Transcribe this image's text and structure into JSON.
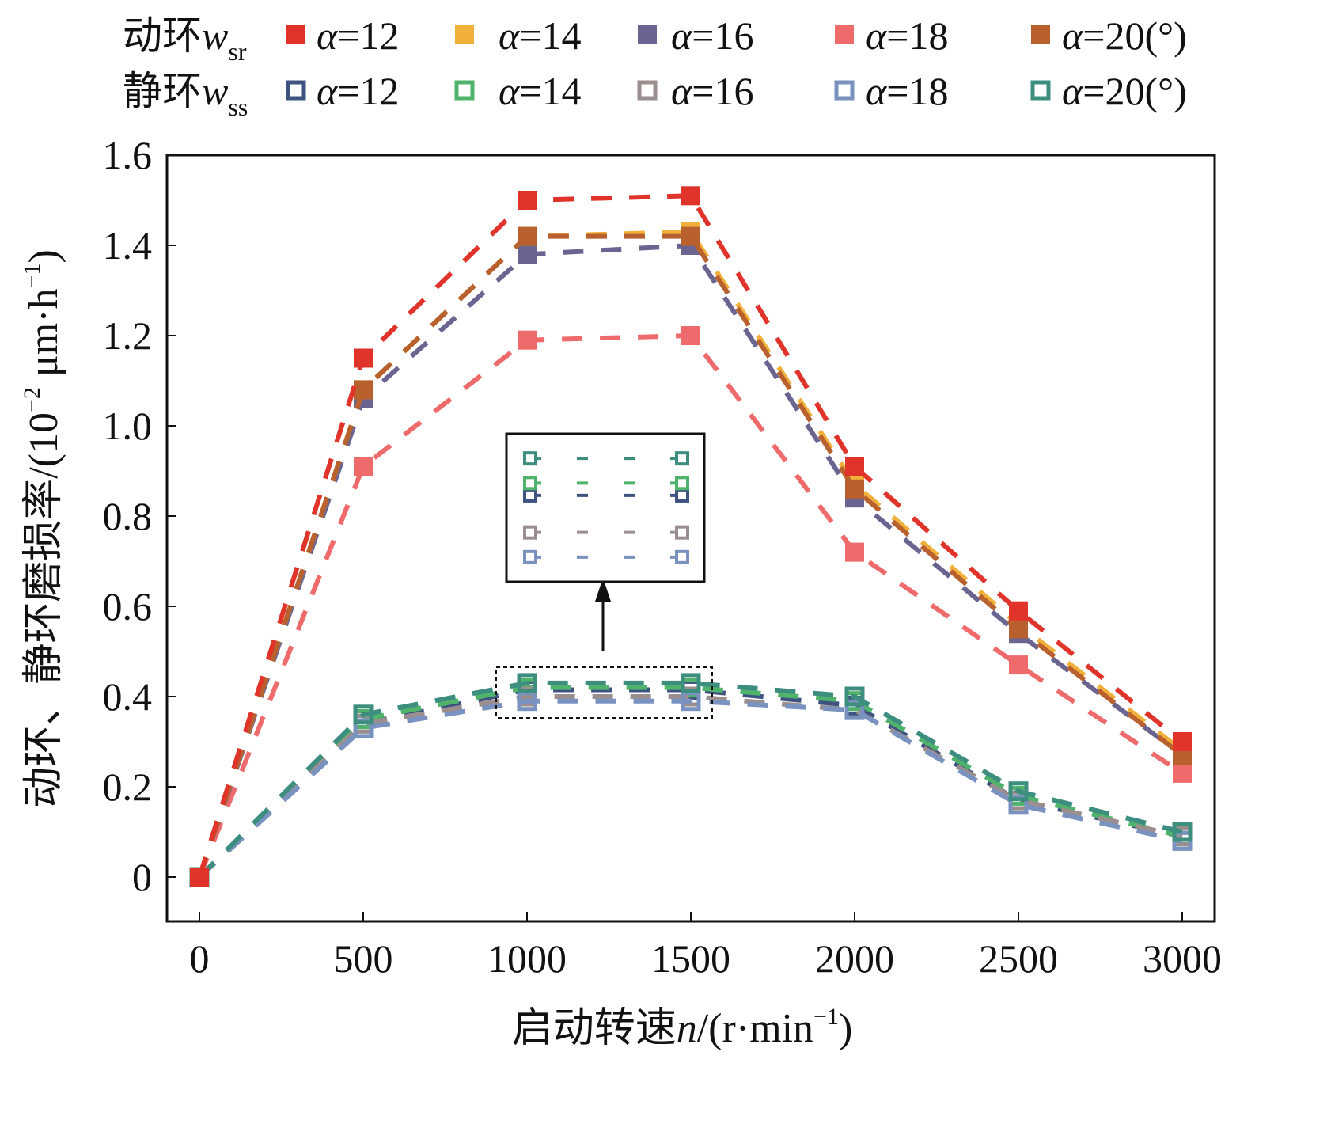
{
  "chart_data": {
    "type": "line",
    "title": "",
    "xlabel": "启动转速n/(r·min⁻¹)",
    "xlabel_parts": {
      "pre": "启动转速",
      "var": "n",
      "post": "/(r·min",
      "sup": "−1",
      "end": ")"
    },
    "ylabel": "动环、静环磨损率/(10⁻² μm·h⁻¹)",
    "ylabel_parts": {
      "pre": "动环、静环磨损率/(10",
      "sup1": "−2",
      "mid": " μm·h",
      "sup2": "−1",
      "end": ")"
    },
    "x": [
      0,
      500,
      1000,
      1500,
      2000,
      2500,
      3000
    ],
    "xlim": [
      -100,
      3100
    ],
    "ylim": [
      -0.1,
      1.6
    ],
    "xticks": [
      "0",
      "500",
      "1000",
      "1500",
      "2000",
      "2500",
      "3000"
    ],
    "yticks": [
      "0",
      "0.2",
      "0.4",
      "0.6",
      "0.8",
      "1.0",
      "1.2",
      "1.4",
      "1.6"
    ],
    "legend_position": "top",
    "legend_groups": [
      {
        "label": "动环",
        "var": "w",
        "sub": "sr"
      },
      {
        "label": "静环",
        "var": "w",
        "sub": "ss"
      }
    ],
    "inset": {
      "xrange": [
        1000,
        1500
      ],
      "yrange": [
        0.38,
        0.44
      ]
    },
    "series": [
      {
        "name": "α=12",
        "group": "wsr",
        "color": "#e0332a",
        "marker": "filled-square",
        "values": [
          0,
          1.15,
          1.5,
          1.51,
          0.91,
          0.59,
          0.3
        ]
      },
      {
        "name": "α=14",
        "group": "wsr",
        "color": "#f0b03a",
        "marker": "filled-square",
        "values": [
          0,
          1.08,
          1.42,
          1.43,
          0.87,
          0.56,
          0.28
        ]
      },
      {
        "name": "α=16",
        "group": "wsr",
        "color": "#6a6590",
        "marker": "filled-square",
        "values": [
          0,
          1.06,
          1.38,
          1.4,
          0.84,
          0.54,
          0.27
        ]
      },
      {
        "name": "α=18",
        "group": "wsr",
        "color": "#ef6b6b",
        "marker": "filled-square",
        "values": [
          0,
          0.91,
          1.19,
          1.2,
          0.72,
          0.47,
          0.23
        ]
      },
      {
        "name": "α=20(°)",
        "group": "wsr",
        "color": "#b8602e",
        "marker": "filled-square",
        "values": [
          0,
          1.08,
          1.42,
          1.42,
          0.86,
          0.55,
          0.27
        ]
      },
      {
        "name": "α=12",
        "group": "wss",
        "color": "#3f5380",
        "marker": "open-square",
        "values": [
          0,
          0.34,
          0.415,
          0.415,
          0.38,
          0.17,
          0.09
        ]
      },
      {
        "name": "α=14",
        "group": "wss",
        "color": "#4fb36b",
        "marker": "open-square",
        "values": [
          0,
          0.35,
          0.42,
          0.42,
          0.39,
          0.18,
          0.09
        ]
      },
      {
        "name": "α=16",
        "group": "wss",
        "color": "#9a8e8e",
        "marker": "open-square",
        "values": [
          0,
          0.34,
          0.4,
          0.4,
          0.37,
          0.17,
          0.09
        ]
      },
      {
        "name": "α=18",
        "group": "wss",
        "color": "#7a92c0",
        "marker": "open-square",
        "values": [
          0,
          0.33,
          0.39,
          0.39,
          0.37,
          0.16,
          0.08
        ]
      },
      {
        "name": "α=20(°)",
        "group": "wss",
        "color": "#3e8e80",
        "marker": "open-square",
        "values": [
          0,
          0.36,
          0.43,
          0.43,
          0.4,
          0.19,
          0.1
        ]
      }
    ]
  }
}
